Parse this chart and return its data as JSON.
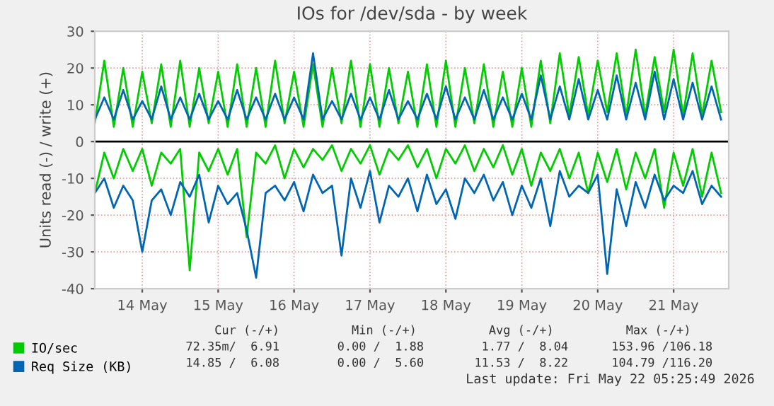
{
  "chart_data": {
    "type": "line",
    "title": "IOs for /dev/sda - by week",
    "ylabel": "Units read (-) / write (+)",
    "x": [
      "2026-05-13T21:00",
      "2026-05-14T00:00",
      "2026-05-14T03:00",
      "2026-05-14T06:00",
      "2026-05-14T09:00",
      "2026-05-14T12:00",
      "2026-05-14T15:00",
      "2026-05-14T18:00",
      "2026-05-14T21:00",
      "2026-05-15T00:00",
      "2026-05-15T03:00",
      "2026-05-15T06:00",
      "2026-05-15T09:00",
      "2026-05-15T12:00",
      "2026-05-15T15:00",
      "2026-05-15T18:00",
      "2026-05-15T21:00",
      "2026-05-16T00:00",
      "2026-05-16T03:00",
      "2026-05-16T06:00",
      "2026-05-16T09:00",
      "2026-05-16T12:00",
      "2026-05-16T15:00",
      "2026-05-16T18:00",
      "2026-05-16T21:00",
      "2026-05-17T00:00",
      "2026-05-17T03:00",
      "2026-05-17T06:00",
      "2026-05-17T09:00",
      "2026-05-17T12:00",
      "2026-05-17T15:00",
      "2026-05-17T18:00",
      "2026-05-17T21:00",
      "2026-05-18T00:00",
      "2026-05-18T03:00",
      "2026-05-18T06:00",
      "2026-05-18T09:00",
      "2026-05-18T12:00",
      "2026-05-18T15:00",
      "2026-05-18T18:00",
      "2026-05-18T21:00",
      "2026-05-19T00:00",
      "2026-05-19T03:00",
      "2026-05-19T06:00",
      "2026-05-19T09:00",
      "2026-05-19T12:00",
      "2026-05-19T15:00",
      "2026-05-19T18:00",
      "2026-05-19T21:00",
      "2026-05-20T00:00",
      "2026-05-20T03:00",
      "2026-05-20T06:00",
      "2026-05-20T09:00",
      "2026-05-20T12:00",
      "2026-05-20T15:00",
      "2026-05-20T18:00",
      "2026-05-20T21:00",
      "2026-05-21T00:00",
      "2026-05-21T03:00",
      "2026-05-21T06:00",
      "2026-05-21T09:00",
      "2026-05-21T12:00",
      "2026-05-21T15:00",
      "2026-05-21T18:00",
      "2026-05-21T21:00",
      "2026-05-22T00:00",
      "2026-05-22T03:00"
    ],
    "series": [
      {
        "name": "IO/sec",
        "color": "#00cc00",
        "values": [
          5,
          22,
          4,
          20,
          4,
          19,
          5,
          21,
          4,
          22,
          4,
          20,
          5,
          19,
          4,
          21,
          4,
          20,
          4,
          22,
          5,
          19,
          4,
          21,
          4,
          20,
          5,
          22,
          4,
          21,
          4,
          20,
          5,
          19,
          4,
          21,
          4,
          22,
          4,
          20,
          5,
          21,
          4,
          19,
          4,
          20,
          4,
          22,
          5,
          24,
          7,
          23,
          7,
          22,
          8,
          24,
          7,
          25,
          7,
          23,
          8,
          25,
          7,
          24,
          7,
          22,
          8
        ]
      },
      {
        "color": "#00cc00",
        "values": [
          -14,
          -3,
          -10,
          -2,
          -8,
          -2,
          -12,
          -3,
          -6,
          -2,
          -35,
          -3,
          -8,
          -2,
          -9,
          -2,
          -26,
          -3,
          -6,
          -1,
          -10,
          -2,
          -7,
          -2,
          -5,
          -1,
          -8,
          -2,
          -6,
          -1,
          -9,
          -2,
          -5,
          -1,
          -7,
          -2,
          -10,
          -2,
          -6,
          -1,
          -8,
          -2,
          -7,
          -1,
          -9,
          -2,
          -12,
          -3,
          -8,
          -2,
          -10,
          -3,
          -14,
          -3,
          -11,
          -2,
          -13,
          -3,
          -10,
          -2,
          -18,
          -3,
          -12,
          -2,
          -15,
          -3,
          -14
        ]
      },
      {
        "name": "Req Size (KB)",
        "color": "#0066b3",
        "values": [
          6,
          12,
          6,
          14,
          6,
          11,
          6,
          15,
          6,
          12,
          6,
          13,
          6,
          11,
          6,
          14,
          6,
          12,
          6,
          13,
          6,
          12,
          6,
          24,
          6,
          11,
          6,
          13,
          6,
          12,
          6,
          14,
          6,
          11,
          6,
          13,
          6,
          15,
          6,
          12,
          6,
          14,
          6,
          12,
          6,
          13,
          6,
          18,
          6,
          15,
          6,
          17,
          6,
          14,
          6,
          18,
          6,
          16,
          6,
          19,
          6,
          17,
          6,
          16,
          6,
          15,
          6
        ]
      },
      {
        "color": "#0066b3",
        "values": [
          -14,
          -10,
          -18,
          -12,
          -16,
          -30,
          -16,
          -13,
          -20,
          -11,
          -15,
          -9,
          -22,
          -12,
          -17,
          -14,
          -24,
          -37,
          -14,
          -12,
          -16,
          -11,
          -19,
          -9,
          -14,
          -12,
          -31,
          -10,
          -18,
          -8,
          -22,
          -12,
          -15,
          -10,
          -19,
          -9,
          -17,
          -13,
          -21,
          -10,
          -14,
          -9,
          -16,
          -11,
          -20,
          -12,
          -18,
          -10,
          -23,
          -8,
          -15,
          -12,
          -14,
          -9,
          -36,
          -13,
          -23,
          -11,
          -18,
          -9,
          -16,
          -12,
          -14,
          -8,
          -17,
          -12,
          -15
        ]
      }
    ],
    "xlim": [
      "2026-05-13T21:00",
      "2026-05-22T05:25"
    ],
    "xticks": [
      {
        "value": "2026-05-14T12:00",
        "label": "14 May"
      },
      {
        "value": "2026-05-15T12:00",
        "label": "15 May"
      },
      {
        "value": "2026-05-16T12:00",
        "label": "16 May"
      },
      {
        "value": "2026-05-17T12:00",
        "label": "17 May"
      },
      {
        "value": "2026-05-18T12:00",
        "label": "18 May"
      },
      {
        "value": "2026-05-19T12:00",
        "label": "19 May"
      },
      {
        "value": "2026-05-20T12:00",
        "label": "20 May"
      },
      {
        "value": "2026-05-21T12:00",
        "label": "21 May"
      }
    ],
    "ylim": [
      -40,
      30
    ],
    "yticks": [
      -40,
      -30,
      -20,
      -10,
      0,
      10,
      20,
      30
    ],
    "ref_lines": [
      {
        "axis": "y",
        "value": 0,
        "color": "#000000"
      }
    ],
    "grid": true,
    "legend": "bottom",
    "annotations": [
      "                   Cur (-/+)          Min (-/+)          Avg (-/+)          Max (-/+)",
      "               72.35m/  6.91        0.00 /  1.88        1.77 /  8.04      153.96 /106.18",
      "               14.85 /  6.08        0.00 /  5.60       11.53 /  8.22      104.79 /116.20",
      "Last update: Fri May 22 05:25:49 2026"
    ]
  }
}
